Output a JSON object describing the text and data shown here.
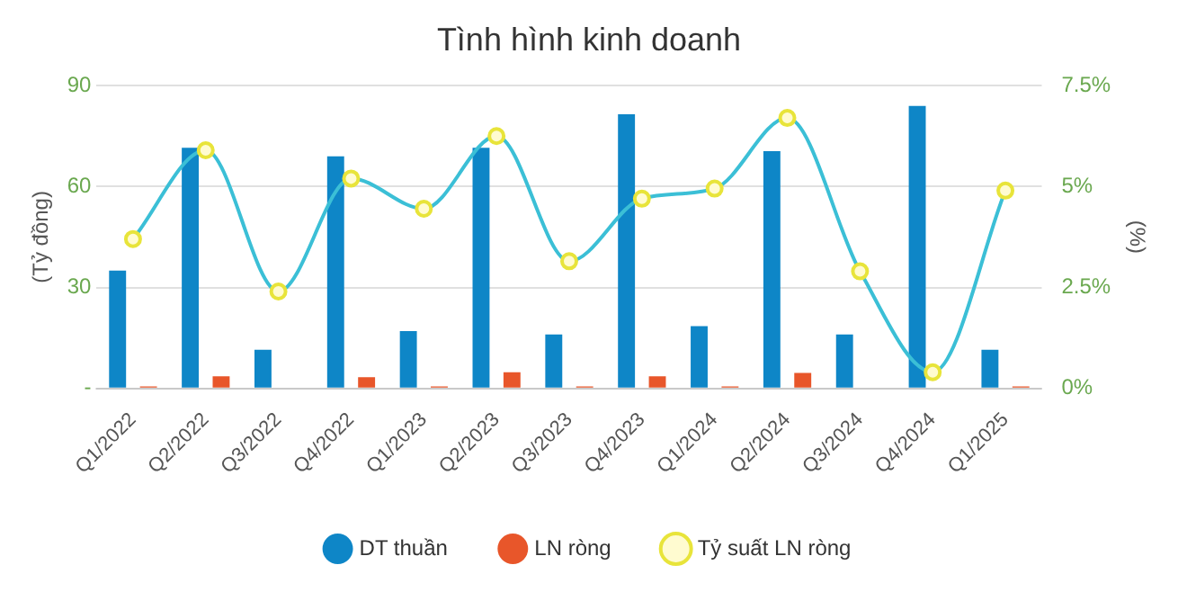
{
  "chart_data": {
    "type": "bar",
    "title": "Tình hình kinh doanh",
    "ylabel": "(Tỷ đồng)",
    "y2label": "(%)",
    "categories": [
      "Q1/2022",
      "Q2/2022",
      "Q3/2022",
      "Q4/2022",
      "Q1/2023",
      "Q2/2023",
      "Q3/2023",
      "Q4/2023",
      "Q1/2024",
      "Q2/2024",
      "Q3/2024",
      "Q4/2024",
      "Q1/2025"
    ],
    "series": [
      {
        "name": "DT thuần",
        "color": "#0e86c7",
        "values": [
          35,
          71.5,
          11.5,
          69,
          17,
          71.5,
          16,
          81.5,
          18.5,
          70.5,
          16,
          84,
          11.5
        ]
      },
      {
        "name": "LN ròng",
        "color": "#e8562a",
        "values": [
          0.6,
          3.6,
          0,
          3.3,
          0.6,
          4.8,
          0.6,
          3.6,
          0.6,
          4.6,
          0,
          0,
          0.6
        ]
      },
      {
        "name": "Tỷ suất LN ròng",
        "type": "line",
        "axis": "y2",
        "color": "#3bbfd6",
        "values": [
          3.7,
          5.9,
          2.4,
          5.2,
          4.45,
          6.25,
          3.15,
          4.7,
          4.95,
          6.7,
          2.9,
          0.4,
          4.9
        ]
      }
    ],
    "ylim": [
      0,
      90
    ],
    "yticks": [
      {
        "value": 0,
        "label": "-"
      },
      30,
      60,
      90
    ],
    "y2lim": [
      0,
      7.5
    ],
    "y2ticks": [
      {
        "value": 0,
        "label": "0%"
      },
      {
        "value": 2.5,
        "label": "2.5%"
      },
      {
        "value": 5,
        "label": "5%"
      },
      {
        "value": 7.5,
        "label": "7.5%"
      }
    ],
    "grid": "y",
    "legend": "bottom",
    "marker": "circle"
  }
}
